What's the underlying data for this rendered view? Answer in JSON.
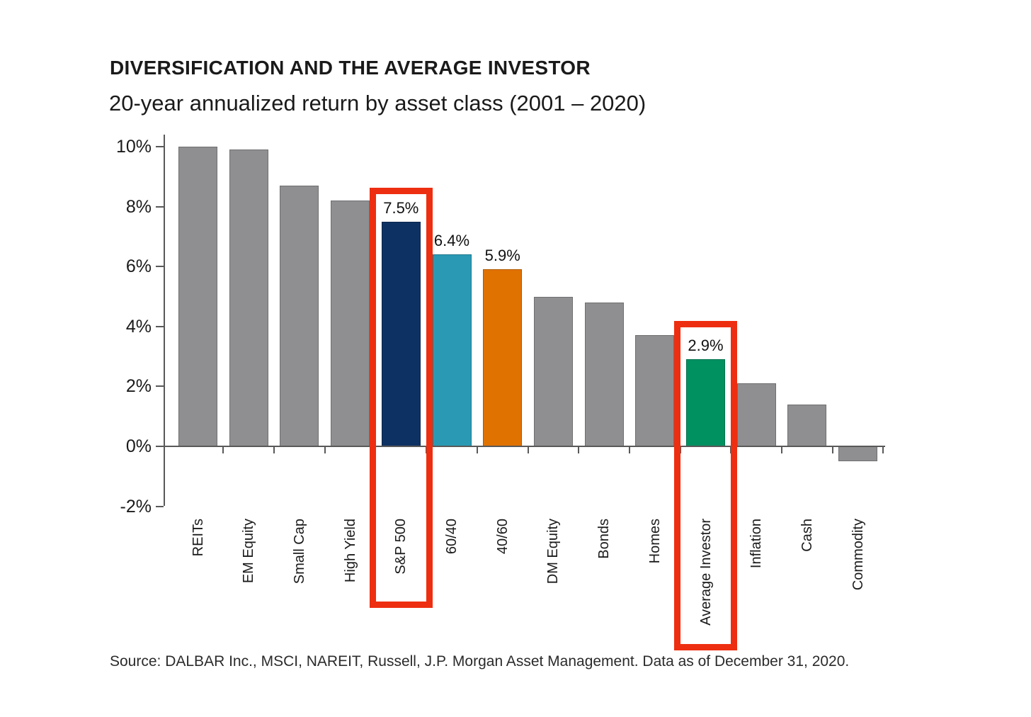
{
  "header": {
    "title": "DIVERSIFICATION AND THE AVERAGE INVESTOR",
    "subtitle": "20-year annualized return by asset class (2001 – 2020)"
  },
  "source": {
    "text": "Source: DALBAR Inc., MSCI, NAREIT, Russell, J.P. Morgan Asset Management. Data as of December 31, 2020."
  },
  "chart_data": {
    "type": "bar",
    "title": "DIVERSIFICATION AND THE AVERAGE INVESTOR",
    "subtitle": "20-year annualized return by asset class (2001 – 2020)",
    "xlabel": "",
    "ylabel": "",
    "ylim": [
      -2,
      10
    ],
    "grid": false,
    "legend": null,
    "y_ticks": [
      {
        "label": "10%",
        "value": 10
      },
      {
        "label": "8%",
        "value": 8
      },
      {
        "label": "6%",
        "value": 6
      },
      {
        "label": "4%",
        "value": 4
      },
      {
        "label": "2%",
        "value": 2
      },
      {
        "label": "0%",
        "value": 0
      },
      {
        "label": "-2%",
        "value": -2
      }
    ],
    "categories": [
      "REITs",
      "EM Equity",
      "Small Cap",
      "High Yield",
      "S&P 500",
      "60/40",
      "40/60",
      "DM Equity",
      "Bonds",
      "Homes",
      "Average Investor",
      "Inflation",
      "Cash",
      "Commodity"
    ],
    "values": [
      10.0,
      9.9,
      8.7,
      8.2,
      7.5,
      6.4,
      5.9,
      5.0,
      4.8,
      3.7,
      2.9,
      2.1,
      1.4,
      -0.5
    ],
    "bars": [
      {
        "label": "REITs",
        "value": 10.0,
        "color": "#8f8f91"
      },
      {
        "label": "EM Equity",
        "value": 9.9,
        "color": "#8f8f91"
      },
      {
        "label": "Small Cap",
        "value": 8.7,
        "color": "#8f8f91"
      },
      {
        "label": "High Yield",
        "value": 8.2,
        "color": "#8f8f91"
      },
      {
        "label": "S&P 500",
        "value": 7.5,
        "color": "#0e3163",
        "data_label": "7.5%",
        "highlight": true
      },
      {
        "label": "60/40",
        "value": 6.4,
        "color": "#2a9ab4",
        "data_label": "6.4%"
      },
      {
        "label": "40/60",
        "value": 5.9,
        "color": "#e07200",
        "data_label": "5.9%"
      },
      {
        "label": "DM Equity",
        "value": 5.0,
        "color": "#8f8f91"
      },
      {
        "label": "Bonds",
        "value": 4.8,
        "color": "#8f8f91"
      },
      {
        "label": "Homes",
        "value": 3.7,
        "color": "#8f8f91"
      },
      {
        "label": "Average Investor",
        "value": 2.9,
        "color": "#009160",
        "data_label": "2.9%",
        "highlight": true
      },
      {
        "label": "Inflation",
        "value": 2.1,
        "color": "#8f8f91"
      },
      {
        "label": "Cash",
        "value": 1.4,
        "color": "#8f8f91"
      },
      {
        "label": "Commodity",
        "value": -0.5,
        "color": "#8f8f91"
      }
    ],
    "colors": {
      "default_bar": "#8f8f91",
      "highlight_box": "#ee2e10",
      "axis": "#595959"
    },
    "highlight_boxes": [
      {
        "target": "S&P 500"
      },
      {
        "target": "Average Investor"
      }
    ]
  }
}
